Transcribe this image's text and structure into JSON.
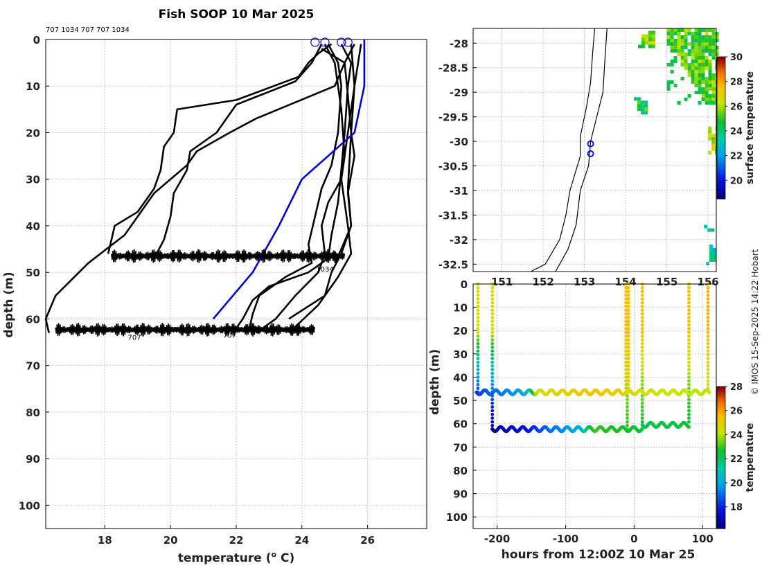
{
  "title": "Fish SOOP 10 Mar 2025",
  "instrument_ids": "707 1034 707 707 1034",
  "credit": "© IMOS 15-Sep-2025 14:22 Hobart",
  "chart_data": [
    {
      "id": "profiles",
      "type": "line",
      "xlabel": "temperature (",
      "xlabel_sup": "o",
      "xlabel_end": " C)",
      "ylabel": "depth (m)",
      "xlim": [
        16.2,
        27.8
      ],
      "ylim": [
        105,
        0
      ],
      "xticks": [
        18,
        20,
        22,
        24,
        26
      ],
      "yticks": [
        0,
        10,
        20,
        30,
        40,
        50,
        60,
        70,
        80,
        90,
        100
      ],
      "grid": true,
      "series": [
        {
          "color": "#000000",
          "points": [
            [
              24.9,
              1
            ],
            [
              24.5,
              3
            ],
            [
              24.2,
              5
            ],
            [
              23.9,
              8
            ],
            [
              22,
              13
            ],
            [
              20.2,
              15
            ],
            [
              20.1,
              20
            ],
            [
              19.8,
              23
            ],
            [
              19.7,
              28
            ],
            [
              19.5,
              32
            ],
            [
              19,
              37
            ],
            [
              18.3,
              40
            ],
            [
              18.1,
              46
            ]
          ]
        },
        {
          "color": "#000000",
          "points": [
            [
              24.6,
              1
            ],
            [
              24.3,
              5
            ],
            [
              23.8,
              9
            ],
            [
              22,
              14
            ],
            [
              21.4,
              20
            ],
            [
              20.6,
              24
            ],
            [
              20.5,
              28
            ],
            [
              20.1,
              33
            ],
            [
              20,
              38
            ],
            [
              19.8,
              43
            ],
            [
              19.5,
              47
            ]
          ]
        },
        {
          "color": "#000000",
          "points": [
            [
              25.6,
              1
            ],
            [
              25.3,
              5
            ],
            [
              25,
              10
            ],
            [
              22.6,
              17
            ],
            [
              21.8,
              20
            ],
            [
              20.8,
              24
            ],
            [
              20.5,
              27
            ],
            [
              19.5,
              33
            ],
            [
              19,
              38
            ],
            [
              18.6,
              42
            ],
            [
              17.5,
              48
            ],
            [
              16.5,
              55
            ],
            [
              16.2,
              60
            ],
            [
              16.3,
              63
            ]
          ]
        },
        {
          "color": "#000000",
          "points": [
            [
              25.2,
              1
            ],
            [
              25.5,
              5
            ],
            [
              25.4,
              10
            ],
            [
              25.3,
              20
            ],
            [
              25.2,
              28
            ],
            [
              25.1,
              35
            ],
            [
              24.9,
              42
            ],
            [
              24.8,
              47
            ],
            [
              24.2,
              50
            ],
            [
              23,
              53
            ],
            [
              22.5,
              56
            ],
            [
              22.2,
              60
            ],
            [
              22,
              62
            ]
          ]
        },
        {
          "color": "#000000",
          "points": [
            [
              24.8,
              1
            ],
            [
              25.1,
              5
            ],
            [
              25.2,
              10
            ],
            [
              25.1,
              20
            ],
            [
              24.9,
              27
            ],
            [
              24.6,
              32
            ],
            [
              24.4,
              38
            ],
            [
              24.2,
              44
            ],
            [
              24.3,
              48
            ],
            [
              23.5,
              51
            ],
            [
              22.7,
              55
            ],
            [
              22.5,
              59
            ],
            [
              22.4,
              62
            ]
          ]
        },
        {
          "color": "#000000",
          "points": [
            [
              25.5,
              1
            ],
            [
              25.6,
              10
            ],
            [
              25.4,
              20
            ],
            [
              25.2,
              30
            ],
            [
              24.8,
              35
            ],
            [
              24.6,
              40
            ],
            [
              24.7,
              46
            ],
            [
              24.5,
              50
            ],
            [
              23.8,
              55
            ],
            [
              23.2,
              60
            ],
            [
              22.6,
              63
            ]
          ]
        },
        {
          "color": "#000000",
          "points": [
            [
              24.6,
              2
            ],
            [
              25.3,
              5
            ],
            [
              25.4,
              12
            ],
            [
              25.5,
              20
            ],
            [
              25.6,
              25
            ],
            [
              25.4,
              33
            ],
            [
              25.5,
              40
            ],
            [
              25.2,
              46
            ],
            [
              24.9,
              50
            ],
            [
              24.7,
              55
            ],
            [
              23.6,
              60
            ]
          ]
        },
        {
          "color": "#000000",
          "points": [
            [
              24.7,
              1
            ],
            [
              25,
              5
            ],
            [
              25.2,
              15
            ],
            [
              25.3,
              25
            ],
            [
              25.2,
              30
            ],
            [
              25.4,
              40
            ],
            [
              25.5,
              46
            ],
            [
              25.1,
              51
            ],
            [
              24.5,
              57
            ],
            [
              23.9,
              61
            ],
            [
              23.6,
              63
            ]
          ]
        },
        {
          "color": "#000000",
          "points": [
            [
              25.8,
              1
            ],
            [
              25.6,
              10
            ],
            [
              25.5,
              20
            ],
            [
              25.4,
              32
            ],
            [
              25.5,
              40
            ],
            [
              25.2,
              45
            ],
            [
              25,
              48
            ]
          ]
        },
        {
          "color": "#0000dd",
          "points": [
            [
              25.9,
              0
            ],
            [
              25.9,
              10
            ],
            [
              25.6,
              20
            ],
            [
              24,
              30
            ],
            [
              23.3,
              40
            ],
            [
              22.5,
              50
            ],
            [
              21.3,
              60
            ]
          ]
        }
      ],
      "bands": [
        {
          "depth": 46.5,
          "x_from": 18.2,
          "x_to": 25.3
        },
        {
          "depth": 62.3,
          "x_from": 16.5,
          "x_to": 24.4
        }
      ],
      "band_labels": [
        {
          "text": "707",
          "x": 18.9,
          "y": 64.5
        },
        {
          "text": "707",
          "x": 21.8,
          "y": 64
        },
        {
          "text": "1034",
          "x": 24.7,
          "y": 49.8
        }
      ],
      "surface_markers": [
        24.4,
        24.7,
        25.2,
        25.4
      ],
      "marker_color": "#0000cc"
    },
    {
      "id": "map",
      "type": "heatmap",
      "xlim": [
        150.3,
        156.2
      ],
      "ylim": [
        -32.65,
        -27.7
      ],
      "xticks": [
        151,
        152,
        153,
        154,
        155,
        156
      ],
      "xticklabels": [
        "151",
        "152",
        "153",
        "154",
        "155",
        "156"
      ],
      "yticks": [
        -28,
        -28.5,
        -29,
        -29.5,
        -30,
        -30.5,
        -31,
        -31.5,
        -32,
        -32.5
      ],
      "yticklabels": [
        "-28",
        "-28.5",
        "-29",
        "-29.5",
        "-30",
        "-30.5",
        "-31",
        "-31.5",
        "-32",
        "-32.5"
      ],
      "grid": true,
      "colorbar_label": "surface temperature",
      "colorbar_range": [
        18.5,
        30
      ],
      "colorbar_ticks": [
        20,
        22,
        24,
        26,
        28,
        30
      ],
      "coast": [
        [
          153.25,
          -27.7
        ],
        [
          153.2,
          -28.2
        ],
        [
          153.15,
          -28.8
        ],
        [
          153.05,
          -29.3
        ],
        [
          152.9,
          -29.9
        ],
        [
          152.9,
          -30.3
        ],
        [
          152.65,
          -31
        ],
        [
          152.55,
          -31.5
        ],
        [
          152.4,
          -32
        ],
        [
          152.05,
          -32.5
        ],
        [
          151.7,
          -32.65
        ]
      ],
      "shelf": [
        [
          153.55,
          -27.7
        ],
        [
          153.5,
          -28.3
        ],
        [
          153.45,
          -29
        ],
        [
          153.3,
          -29.5
        ],
        [
          153.15,
          -30
        ],
        [
          153.1,
          -30.5
        ],
        [
          152.9,
          -31
        ],
        [
          152.8,
          -31.7
        ],
        [
          152.6,
          -32.2
        ],
        [
          152.3,
          -32.65
        ]
      ],
      "sst_patches": [
        {
          "lon": [
            155,
            156.2
          ],
          "lat": [
            -29.2,
            -27.7
          ],
          "temp": 25.4
        },
        {
          "lon": [
            154.3,
            154.7
          ],
          "lat": [
            -28.05,
            -27.75
          ],
          "temp": 25.8
        },
        {
          "lon": [
            154.2,
            154.5
          ],
          "lat": [
            -29.4,
            -29.1
          ],
          "temp": 24.5
        },
        {
          "lon": [
            156.0,
            156.2
          ],
          "lat": [
            -30.2,
            -29.7
          ],
          "temp": 26.5
        },
        {
          "lon": [
            155.95,
            156.2
          ],
          "lat": [
            -32.5,
            -32.1
          ],
          "temp": 23.5
        },
        {
          "lon": [
            155.9,
            156.1
          ],
          "lat": [
            -31.85,
            -31.7
          ],
          "temp": 23.8
        }
      ],
      "ship_positions": [
        [
          153.15,
          -30.05
        ],
        [
          153.15,
          -30.25
        ]
      ]
    },
    {
      "id": "section",
      "type": "scatter",
      "xlabel": "hours from 12:00Z 10 Mar 25",
      "ylabel": "depth (m)",
      "xlim": [
        -235,
        120
      ],
      "ylim": [
        105,
        0
      ],
      "xticks": [
        -200,
        -100,
        0,
        100
      ],
      "xticklabels": [
        "-200",
        "-100",
        "0",
        "100"
      ],
      "yticks": [
        0,
        10,
        20,
        30,
        40,
        50,
        60,
        70,
        80,
        90,
        100
      ],
      "colorbar_label": "temperature",
      "colorbar_range": [
        16.2,
        28
      ],
      "colorbar_ticks": [
        18,
        20,
        22,
        24,
        26,
        28
      ],
      "casts": [
        {
          "hour": -228,
          "max_depth": 46.5,
          "surface_temp": 24.5,
          "bottom_temp": 18.5
        },
        {
          "hour": -207,
          "max_depth": 62.5,
          "surface_temp": 24.6,
          "bottom_temp": 16.5
        },
        {
          "hour": -12,
          "max_depth": 47.5,
          "surface_temp": 25.4,
          "bottom_temp": 25
        },
        {
          "hour": -10,
          "max_depth": 62.5,
          "surface_temp": 25.6,
          "bottom_temp": 22.8
        },
        {
          "hour": -8,
          "max_depth": 47.0,
          "surface_temp": 25.5,
          "bottom_temp": 25.2
        },
        {
          "hour": 12,
          "max_depth": 62.5,
          "surface_temp": 25.5,
          "bottom_temp": 22.5
        },
        {
          "hour": 80,
          "max_depth": 60.5,
          "surface_temp": 25.6,
          "bottom_temp": 22.4
        },
        {
          "hour": 108,
          "max_depth": 45.5,
          "surface_temp": 25.8,
          "bottom_temp": 24.2
        }
      ],
      "tows": [
        {
          "depth": 46.5,
          "x_from": -230,
          "x_to": 110,
          "temps": [
            [
              -230,
              18.3
            ],
            [
              -160,
              20
            ],
            [
              -140,
              24.5
            ],
            [
              -90,
              25
            ],
            [
              -60,
              25.5
            ],
            [
              -12,
              25
            ],
            [
              10,
              24.4
            ],
            [
              110,
              24.1
            ]
          ]
        },
        {
          "depth": 62.3,
          "x_from": -207,
          "x_to": 12,
          "temps": [
            [
              -207,
              16.5
            ],
            [
              -170,
              17.2
            ],
            [
              -130,
              18.8
            ],
            [
              -80,
              20
            ],
            [
              -60,
              23
            ],
            [
              -40,
              22.8
            ],
            [
              -10,
              22.7
            ],
            [
              12,
              22.5
            ]
          ]
        },
        {
          "depth": 60.5,
          "x_from": 12,
          "x_to": 80,
          "temps": [
            [
              12,
              22.2
            ],
            [
              80,
              22.5
            ]
          ]
        }
      ]
    }
  ]
}
